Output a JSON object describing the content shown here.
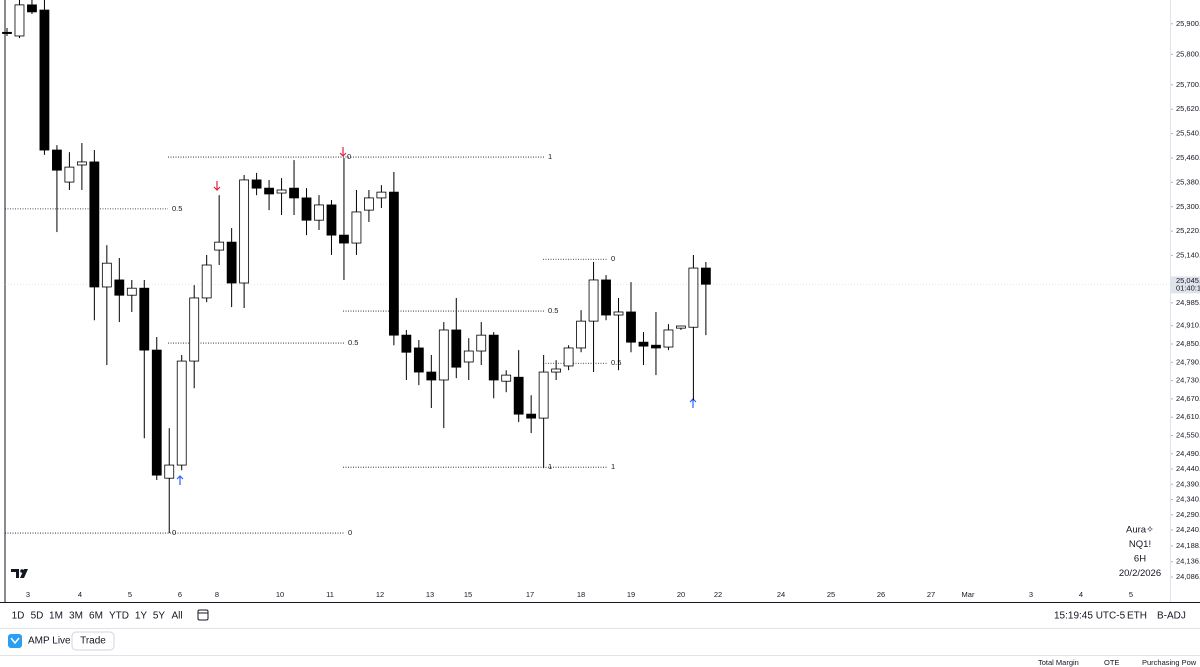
{
  "chart_data": {
    "type": "candlestick",
    "up_color": "#ffffff",
    "down_color": "#000000",
    "outline_color": "#000000",
    "ylim": [
      24004,
      25978
    ],
    "yticks": [
      {
        "value": 25900,
        "label": "25,900.00"
      },
      {
        "value": 25800,
        "label": "25,800.00"
      },
      {
        "value": 25700,
        "label": "25,700.00"
      },
      {
        "value": 25620,
        "label": "25,620.00"
      },
      {
        "value": 25540,
        "label": "25,540.00"
      },
      {
        "value": 25460,
        "label": "25,460.00"
      },
      {
        "value": 25380,
        "label": "25,380.00"
      },
      {
        "value": 25300,
        "label": "25,300.00"
      },
      {
        "value": 25220,
        "label": "25,220.00"
      },
      {
        "value": 25140,
        "label": "25,140.00"
      },
      {
        "value": 25060,
        "label": "25,060.00"
      },
      {
        "value": 24985,
        "label": "24,985.00"
      },
      {
        "value": 24910,
        "label": "24,910.00"
      },
      {
        "value": 24850,
        "label": "24,850.00"
      },
      {
        "value": 24790,
        "label": "24,790.00"
      },
      {
        "value": 24730,
        "label": "24,730.00"
      },
      {
        "value": 24670,
        "label": "24,670.00"
      },
      {
        "value": 24610,
        "label": "24,610.00"
      },
      {
        "value": 24550,
        "label": "24,550.00"
      },
      {
        "value": 24490,
        "label": "24,490.00"
      },
      {
        "value": 24440,
        "label": "24,440.00"
      },
      {
        "value": 24390,
        "label": "24,390.00"
      },
      {
        "value": 24340,
        "label": "24,340.00"
      },
      {
        "value": 24290,
        "label": "24,290.00"
      },
      {
        "value": 24240,
        "label": "24,240.00"
      },
      {
        "value": 24188,
        "label": "24,188.00"
      },
      {
        "value": 24136,
        "label": "24,136.00"
      },
      {
        "value": 24086,
        "label": "24,086.00"
      }
    ],
    "x_labels": [
      "3",
      "4",
      "5",
      "6",
      "8",
      "10",
      "11",
      "12",
      "13",
      "15",
      "17",
      "18",
      "19",
      "20",
      "22",
      "24",
      "25",
      "26",
      "27",
      "Mar",
      "3",
      "4",
      "5"
    ],
    "last_price": {
      "value": 25045.5,
      "label": "25,045.50",
      "countdown": "01:40:15"
    },
    "candles": [
      {
        "open": 25872,
        "high": 25886,
        "low": 25860,
        "close": 25868
      },
      {
        "open": 25860,
        "high": 25978,
        "low": 25853,
        "close": 25962
      },
      {
        "open": 25962,
        "high": 25978,
        "low": 25932,
        "close": 25939
      },
      {
        "open": 25945,
        "high": 25978,
        "low": 25470,
        "close": 25486
      },
      {
        "open": 25486,
        "high": 25502,
        "low": 25217,
        "close": 25420
      },
      {
        "open": 25381,
        "high": 25479,
        "low": 25355,
        "close": 25430
      },
      {
        "open": 25437,
        "high": 25509,
        "low": 25355,
        "close": 25447
      },
      {
        "open": 25447,
        "high": 25486,
        "low": 24928,
        "close": 25037
      },
      {
        "open": 25037,
        "high": 25174,
        "low": 24781,
        "close": 25115
      },
      {
        "open": 25060,
        "high": 25132,
        "low": 24922,
        "close": 25010
      },
      {
        "open": 25010,
        "high": 25060,
        "low": 24955,
        "close": 25033
      },
      {
        "open": 25033,
        "high": 25060,
        "low": 24541,
        "close": 24830
      },
      {
        "open": 24830,
        "high": 24873,
        "low": 24404,
        "close": 24420
      },
      {
        "open": 24410,
        "high": 24574,
        "low": 24230,
        "close": 24453
      },
      {
        "open": 24453,
        "high": 24814,
        "low": 24436,
        "close": 24794
      },
      {
        "open": 24794,
        "high": 25043,
        "low": 24705,
        "close": 25001
      },
      {
        "open": 25001,
        "high": 25142,
        "low": 24987,
        "close": 25109
      },
      {
        "open": 25158,
        "high": 25338,
        "low": 25109,
        "close": 25184
      },
      {
        "open": 25184,
        "high": 25230,
        "low": 24971,
        "close": 25050
      },
      {
        "open": 25050,
        "high": 25404,
        "low": 24968,
        "close": 25388
      },
      {
        "open": 25388,
        "high": 25411,
        "low": 25338,
        "close": 25361
      },
      {
        "open": 25361,
        "high": 25388,
        "low": 25289,
        "close": 25342
      },
      {
        "open": 25345,
        "high": 25394,
        "low": 25273,
        "close": 25355
      },
      {
        "open": 25361,
        "high": 25453,
        "low": 25273,
        "close": 25329
      },
      {
        "open": 25329,
        "high": 25361,
        "low": 25207,
        "close": 25256
      },
      {
        "open": 25256,
        "high": 25338,
        "low": 25224,
        "close": 25306
      },
      {
        "open": 25306,
        "high": 25322,
        "low": 25142,
        "close": 25207
      },
      {
        "open": 25207,
        "high": 25460,
        "low": 25060,
        "close": 25181
      },
      {
        "open": 25181,
        "high": 25355,
        "low": 25142,
        "close": 25283
      },
      {
        "open": 25289,
        "high": 25355,
        "low": 25250,
        "close": 25329
      },
      {
        "open": 25329,
        "high": 25371,
        "low": 25296,
        "close": 25348
      },
      {
        "open": 25348,
        "high": 25414,
        "low": 24846,
        "close": 24879
      },
      {
        "open": 24879,
        "high": 24896,
        "low": 24732,
        "close": 24823
      },
      {
        "open": 24837,
        "high": 24863,
        "low": 24715,
        "close": 24758
      },
      {
        "open": 24758,
        "high": 24814,
        "low": 24640,
        "close": 24732
      },
      {
        "open": 24732,
        "high": 24922,
        "low": 24574,
        "close": 24896
      },
      {
        "open": 24896,
        "high": 25001,
        "low": 24738,
        "close": 24774
      },
      {
        "open": 24791,
        "high": 24869,
        "low": 24732,
        "close": 24827
      },
      {
        "open": 24827,
        "high": 24922,
        "low": 24781,
        "close": 24879
      },
      {
        "open": 24879,
        "high": 24889,
        "low": 24672,
        "close": 24732
      },
      {
        "open": 24728,
        "high": 24764,
        "low": 24692,
        "close": 24748
      },
      {
        "open": 24741,
        "high": 24830,
        "low": 24594,
        "close": 24620
      },
      {
        "open": 24620,
        "high": 24682,
        "low": 24558,
        "close": 24607
      },
      {
        "open": 24607,
        "high": 24814,
        "low": 24443,
        "close": 24758
      },
      {
        "open": 24758,
        "high": 24797,
        "low": 24732,
        "close": 24768
      },
      {
        "open": 24778,
        "high": 24846,
        "low": 24764,
        "close": 24837
      },
      {
        "open": 24837,
        "high": 24961,
        "low": 24823,
        "close": 24925
      },
      {
        "open": 24925,
        "high": 25119,
        "low": 24758,
        "close": 25060
      },
      {
        "open": 25060,
        "high": 25076,
        "low": 24928,
        "close": 24945
      },
      {
        "open": 24945,
        "high": 25001,
        "low": 24764,
        "close": 24955
      },
      {
        "open": 24955,
        "high": 25053,
        "low": 24823,
        "close": 24856
      },
      {
        "open": 24856,
        "high": 24889,
        "low": 24781,
        "close": 24843
      },
      {
        "open": 24846,
        "high": 24955,
        "low": 24748,
        "close": 24837
      },
      {
        "open": 24840,
        "high": 24915,
        "low": 24830,
        "close": 24896
      },
      {
        "open": 24902,
        "high": 24909,
        "low": 24896,
        "close": 24909
      },
      {
        "open": 24905,
        "high": 25142,
        "low": 24666,
        "close": 25099
      },
      {
        "open": 25099,
        "high": 25119,
        "low": 24879,
        "close": 25046
      }
    ],
    "levels": [
      {
        "value": 25293,
        "label": "0.5"
      },
      {
        "value": 25463,
        "label": "0",
        "label2": "1"
      },
      {
        "value": 24853,
        "label": "0.5"
      },
      {
        "value": 24230,
        "label": "0",
        "label2": "0"
      },
      {
        "value": 25128,
        "label": "0"
      },
      {
        "value": 24958,
        "label": "0.5"
      },
      {
        "value": 24787,
        "label": "0.5"
      },
      {
        "value": 24446,
        "label": "1",
        "label2": "1"
      }
    ],
    "legend": [
      "Aura✧",
      "NQ1!",
      "6H",
      "20/2/2026"
    ]
  },
  "toolbar": {
    "ranges": [
      "1D",
      "5D",
      "1M",
      "3M",
      "6M",
      "YTD",
      "1Y",
      "5Y",
      "All"
    ],
    "time": "15:19:45 UTC-5",
    "session": "ETH",
    "adjust": "B-ADJ"
  },
  "panel": {
    "broker": "AMP Live",
    "trade": "Trade",
    "columns": [
      "Total Margin",
      "OTE",
      "Purchasing Pow"
    ]
  }
}
